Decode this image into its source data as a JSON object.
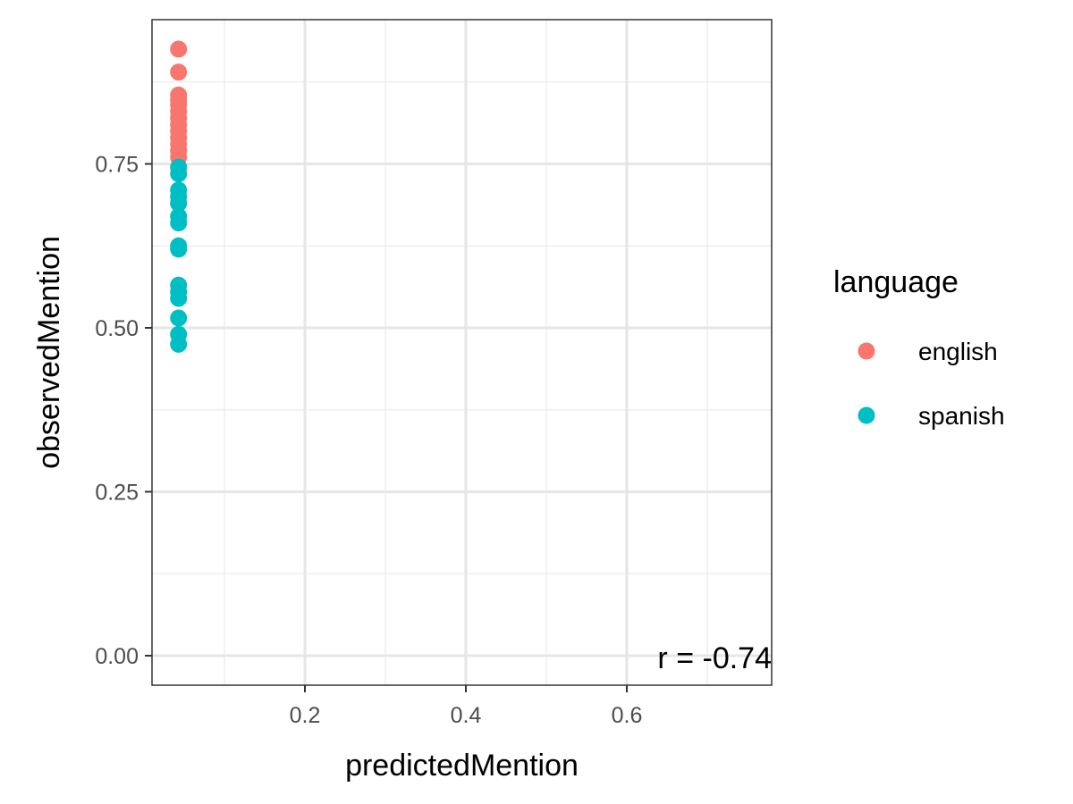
{
  "chart_data": {
    "type": "scatter",
    "xlabel": "predictedMention",
    "ylabel": "observedMention",
    "xlim": [
      0.01,
      0.78
    ],
    "ylim": [
      -0.045,
      0.97
    ],
    "x_ticks": [
      0.2,
      0.4,
      0.6
    ],
    "x_tick_labels": [
      "0.2",
      "0.4",
      "0.6"
    ],
    "y_ticks": [
      0.0,
      0.25,
      0.5,
      0.75
    ],
    "y_tick_labels": [
      "0.00",
      "0.25",
      "0.50",
      "0.75"
    ],
    "grid": true,
    "legend": {
      "title": "language",
      "position": "right"
    },
    "annotation": {
      "text": "r = -0.74",
      "position": "bottom-right"
    },
    "series": [
      {
        "name": "english",
        "color": "#F8766D",
        "points": [
          [
            0.043,
            0.925
          ],
          [
            0.043,
            0.89
          ],
          [
            0.043,
            0.855
          ],
          [
            0.043,
            0.848
          ],
          [
            0.043,
            0.84
          ],
          [
            0.043,
            0.83
          ],
          [
            0.043,
            0.82
          ],
          [
            0.043,
            0.81
          ],
          [
            0.043,
            0.8
          ],
          [
            0.043,
            0.79
          ],
          [
            0.043,
            0.78
          ],
          [
            0.043,
            0.77
          ],
          [
            0.043,
            0.76
          ],
          [
            0.043,
            0.69
          ]
        ]
      },
      {
        "name": "spanish",
        "color": "#00BFC4",
        "points": [
          [
            0.043,
            0.745
          ],
          [
            0.043,
            0.735
          ],
          [
            0.043,
            0.71
          ],
          [
            0.043,
            0.7
          ],
          [
            0.043,
            0.69
          ],
          [
            0.043,
            0.67
          ],
          [
            0.043,
            0.66
          ],
          [
            0.043,
            0.625
          ],
          [
            0.043,
            0.62
          ],
          [
            0.043,
            0.565
          ],
          [
            0.043,
            0.555
          ],
          [
            0.043,
            0.545
          ],
          [
            0.043,
            0.515
          ],
          [
            0.043,
            0.49
          ],
          [
            0.043,
            0.475
          ]
        ]
      }
    ]
  }
}
